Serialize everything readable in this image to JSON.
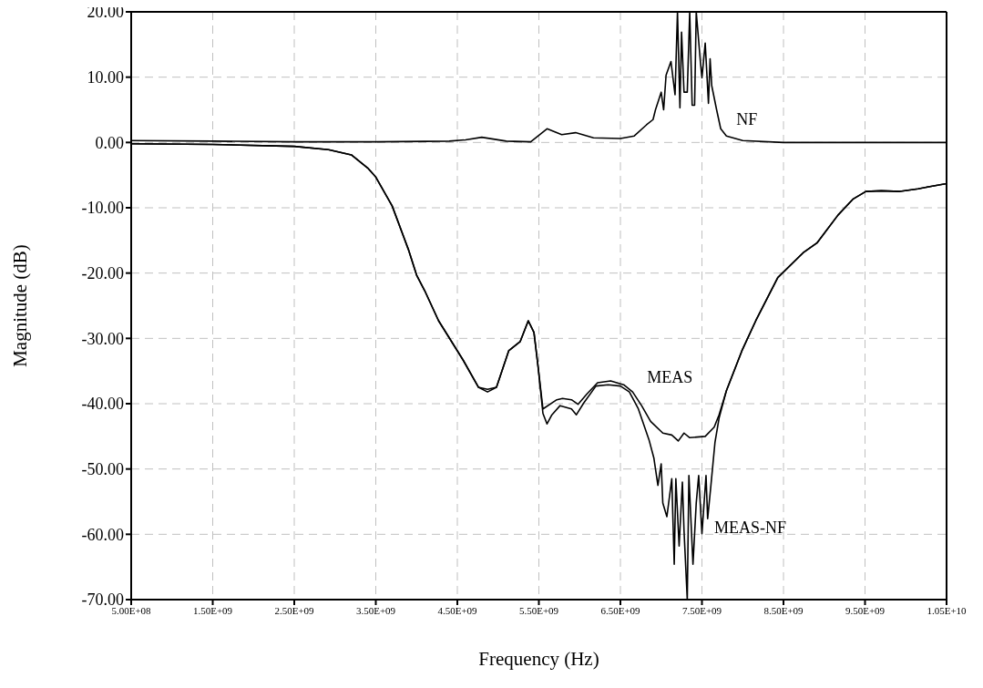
{
  "chart_data": {
    "type": "line",
    "xlabel": "Frequency (Hz)",
    "ylabel": "Magnitude (dB)",
    "xlim": [
      500000000.0,
      10500000000.0
    ],
    "ylim": [
      -70,
      20
    ],
    "xticks": [
      {
        "value": 500000000.0,
        "label": "5.00E+08"
      },
      {
        "value": 1500000000.0,
        "label": "1.50E+09"
      },
      {
        "value": 2500000000.0,
        "label": "2.50E+09"
      },
      {
        "value": 3500000000.0,
        "label": "3.50E+09"
      },
      {
        "value": 4500000000.0,
        "label": "4.50E+09"
      },
      {
        "value": 5500000000.0,
        "label": "5.50E+09"
      },
      {
        "value": 6500000000.0,
        "label": "6.50E+09"
      },
      {
        "value": 7500000000.0,
        "label": "7.50E+09"
      },
      {
        "value": 8500000000.0,
        "label": "8.50E+09"
      },
      {
        "value": 9500000000.0,
        "label": "9.50E+09"
      },
      {
        "value": 10500000000.0,
        "label": "1.05E+10"
      }
    ],
    "yticks": [
      {
        "value": 20,
        "label": "20.00"
      },
      {
        "value": 10,
        "label": "10.00"
      },
      {
        "value": 0,
        "label": "0.00"
      },
      {
        "value": -10,
        "label": "-10.00"
      },
      {
        "value": -20,
        "label": "-20.00"
      },
      {
        "value": -30,
        "label": "-30.00"
      },
      {
        "value": -40,
        "label": "-40.00"
      },
      {
        "value": -50,
        "label": "-50.00"
      },
      {
        "value": -60,
        "label": "-60.00"
      },
      {
        "value": -70,
        "label": "-70.00"
      }
    ],
    "grid": true,
    "line_style": "solid",
    "series": [
      {
        "name": "NF",
        "color": "#000000",
        "x": [
          500000000.0,
          1500000000.0,
          2500000000.0,
          3500000000.0,
          4400000000.0,
          4600000000.0,
          4800000000.0,
          5100000000.0,
          5400000000.0,
          5600000000.0,
          5780000000.0,
          5950000000.0,
          6170000000.0,
          6500000000.0,
          6670000000.0,
          6820000000.0,
          6900000000.0,
          6930000000.0,
          7000000000.0,
          7030000000.0,
          7060000000.0,
          7120000000.0,
          7170000000.0,
          7200000000.0,
          7230000000.0,
          7250000000.0,
          7280000000.0,
          7320000000.0,
          7350000000.0,
          7380000000.0,
          7410000000.0,
          7430000000.0,
          7480000000.0,
          7500000000.0,
          7540000000.0,
          7580000000.0,
          7600000000.0,
          7620000000.0,
          7680000000.0,
          7730000000.0,
          7800000000.0,
          8000000000.0,
          8500000000.0,
          9500000000.0,
          10500000000.0
        ],
        "values": [
          0.3,
          0.2,
          0.1,
          0.1,
          0.2,
          0.4,
          0.8,
          0.2,
          0.1,
          2.1,
          1.2,
          1.5,
          0.7,
          0.6,
          1.0,
          2.7,
          3.5,
          5.0,
          7.7,
          5.0,
          10.3,
          12.4,
          7.3,
          20,
          5.3,
          16.9,
          7.7,
          7.7,
          20,
          5.7,
          5.7,
          20,
          12.5,
          9.9,
          15.2,
          6.0,
          12.8,
          8.7,
          5.0,
          2.1,
          1.0,
          0.3,
          0.0,
          0.0,
          0.0
        ]
      },
      {
        "name": "MEAS",
        "color": "#000000",
        "x": [
          500000000.0,
          1500000000.0,
          2500000000.0,
          2920000000.0,
          3200000000.0,
          3400000000.0,
          3500000000.0,
          3700000000.0,
          3900000000.0,
          4000000000.0,
          4100000000.0,
          4270000000.0,
          4570000000.0,
          4760000000.0,
          4870000000.0,
          4980000000.0,
          5130000000.0,
          5270000000.0,
          5370000000.0,
          5440000000.0,
          5490000000.0,
          5550000000.0,
          5720000000.0,
          5790000000.0,
          5900000000.0,
          5980000000.0,
          6090000000.0,
          6220000000.0,
          6380000000.0,
          6540000000.0,
          6650000000.0,
          6760000000.0,
          6870000000.0,
          7020000000.0,
          7130000000.0,
          7210000000.0,
          7280000000.0,
          7350000000.0,
          7540000000.0,
          7650000000.0,
          7710000000.0,
          7800000000.0,
          7990000000.0,
          8160000000.0,
          8430000000.0,
          8740000000.0,
          8910000000.0,
          9170000000.0,
          9350000000.0,
          9510000000.0,
          9700000000.0,
          9930000000.0,
          10150000000.0,
          10280000000.0,
          10500000000.0
        ],
        "values": [
          -0.2,
          -0.3,
          -0.6,
          -1.1,
          -1.9,
          -3.9,
          -5.3,
          -9.7,
          -16.4,
          -20.3,
          -22.7,
          -27.3,
          -33.3,
          -37.5,
          -37.8,
          -37.5,
          -31.9,
          -30.5,
          -27.3,
          -29.1,
          -34.3,
          -40.8,
          -39.4,
          -39.2,
          -39.4,
          -40.1,
          -38.5,
          -36.8,
          -36.5,
          -37.1,
          -38.2,
          -40.3,
          -42.7,
          -44.5,
          -44.8,
          -45.7,
          -44.5,
          -45.2,
          -45.0,
          -43.6,
          -41.7,
          -38.0,
          -31.9,
          -27.3,
          -20.7,
          -16.9,
          -15.4,
          -11.1,
          -8.7,
          -7.5,
          -7.4,
          -7.5,
          -7.1,
          -6.8,
          -6.3
        ]
      },
      {
        "name": "MEAS-NF",
        "color": "#000000",
        "x": [
          500000000.0,
          1500000000.0,
          2500000000.0,
          2920000000.0,
          3200000000.0,
          3400000000.0,
          3500000000.0,
          3700000000.0,
          3900000000.0,
          4000000000.0,
          4100000000.0,
          4270000000.0,
          4570000000.0,
          4760000000.0,
          4870000000.0,
          4980000000.0,
          5130000000.0,
          5270000000.0,
          5370000000.0,
          5440000000.0,
          5490000000.0,
          5550000000.0,
          5600000000.0,
          5660000000.0,
          5760000000.0,
          5900000000.0,
          5960000000.0,
          6050000000.0,
          6200000000.0,
          6350000000.0,
          6500000000.0,
          6610000000.0,
          6720000000.0,
          6850000000.0,
          6910000000.0,
          6960000000.0,
          7000000000.0,
          7020000000.0,
          7070000000.0,
          7130000000.0,
          7160000000.0,
          7180000000.0,
          7220000000.0,
          7260000000.0,
          7280000000.0,
          7320000000.0,
          7340000000.0,
          7390000000.0,
          7430000000.0,
          7460000000.0,
          7500000000.0,
          7550000000.0,
          7570000000.0,
          7610000000.0,
          7660000000.0,
          7710000000.0,
          7800000000.0,
          7990000000.0,
          8160000000.0,
          8430000000.0,
          8740000000.0,
          8910000000.0,
          9170000000.0,
          9350000000.0,
          9510000000.0,
          9700000000.0,
          9930000000.0,
          10150000000.0,
          10280000000.0,
          10500000000.0
        ],
        "values": [
          -0.2,
          -0.3,
          -0.6,
          -1.1,
          -1.9,
          -3.9,
          -5.3,
          -9.7,
          -16.4,
          -20.3,
          -22.7,
          -27.3,
          -33.3,
          -37.5,
          -38.2,
          -37.5,
          -31.9,
          -30.5,
          -27.3,
          -29.1,
          -34.3,
          -41.5,
          -43.1,
          -41.7,
          -40.3,
          -40.8,
          -41.7,
          -39.9,
          -37.3,
          -37.1,
          -37.3,
          -38.2,
          -40.8,
          -45.5,
          -48.3,
          -52.5,
          -49.2,
          -55.2,
          -57.3,
          -51.5,
          -64.6,
          -51.5,
          -61.8,
          -52.0,
          -59.4,
          -70,
          -51.0,
          -64.6,
          -55.2,
          -51.0,
          -59.9,
          -51.0,
          -57.6,
          -52.5,
          -45.9,
          -42.2,
          -38.0,
          -31.9,
          -27.3,
          -20.7,
          -16.9,
          -15.4,
          -11.1,
          -8.7,
          -7.5,
          -7.4,
          -7.5,
          -7.1,
          -6.8,
          -6.3
        ]
      }
    ]
  }
}
